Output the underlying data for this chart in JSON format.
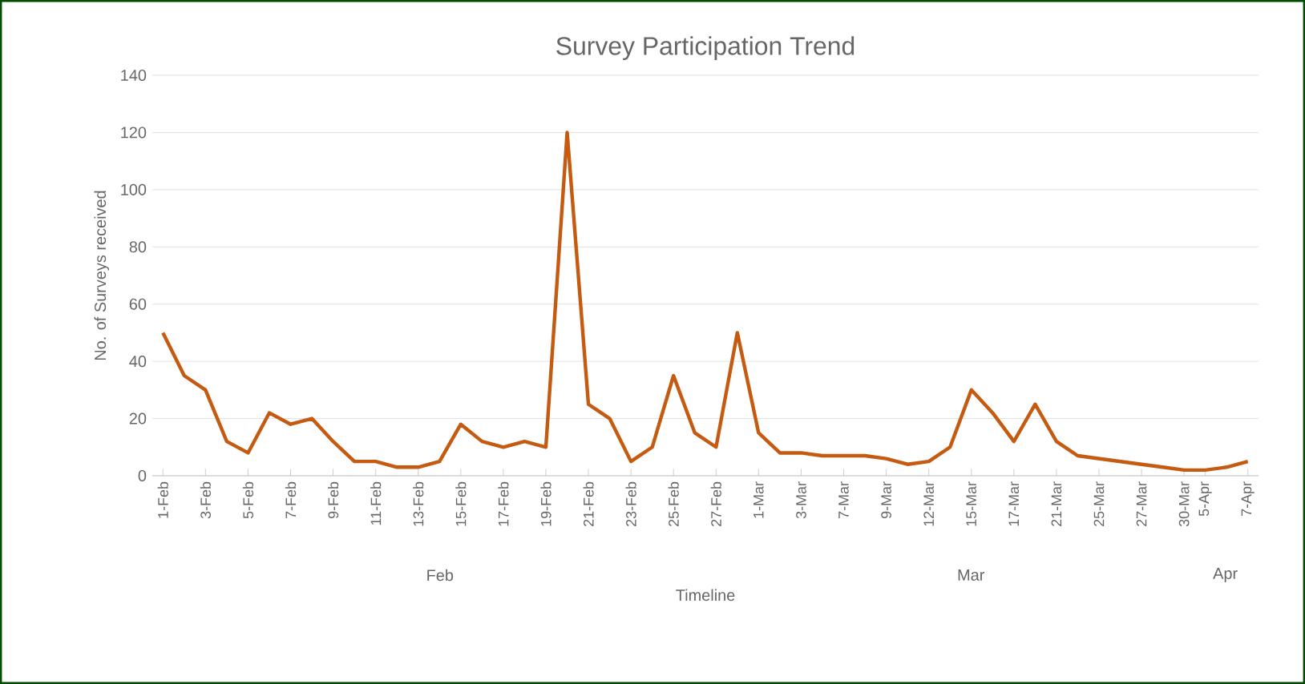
{
  "chart_data": {
    "type": "line",
    "title": "Survey Participation Trend",
    "xlabel": "Timeline",
    "ylabel": "No. of Surveys received",
    "categories": [
      "1-Feb",
      null,
      "3-Feb",
      null,
      "5-Feb",
      null,
      "7-Feb",
      null,
      "9-Feb",
      null,
      "11-Feb",
      null,
      "13-Feb",
      null,
      "15-Feb",
      null,
      "17-Feb",
      null,
      "19-Feb",
      null,
      "21-Feb",
      null,
      "23-Feb",
      null,
      "25-Feb",
      null,
      "27-Feb",
      null,
      "1-Mar",
      null,
      "3-Mar",
      null,
      "7-Mar",
      null,
      "9-Mar",
      null,
      "12-Mar",
      null,
      "15-Mar",
      null,
      "17-Mar",
      null,
      "21-Mar",
      null,
      "25-Mar",
      null,
      "27-Mar",
      null,
      "30-Mar",
      "5-Apr",
      null,
      "7-Apr"
    ],
    "series": [
      {
        "color": "#c55a11",
        "values": [
          50,
          35,
          30,
          12,
          8,
          22,
          18,
          20,
          12,
          5,
          5,
          3,
          3,
          5,
          18,
          12,
          10,
          12,
          10,
          120,
          25,
          20,
          5,
          10,
          35,
          15,
          10,
          50,
          15,
          8,
          8,
          7,
          7,
          7,
          6,
          4,
          5,
          10,
          30,
          22,
          12,
          25,
          12,
          7,
          6,
          5,
          4,
          3,
          2,
          2,
          3,
          5
        ]
      }
    ],
    "ylim": [
      0,
      140
    ],
    "yticks": [
      0,
      20,
      40,
      60,
      80,
      100,
      120,
      140
    ],
    "grid": "y",
    "marker": "none",
    "line_style": "solid",
    "annotations": [
      "Feb",
      "Mar",
      "Apr"
    ]
  }
}
